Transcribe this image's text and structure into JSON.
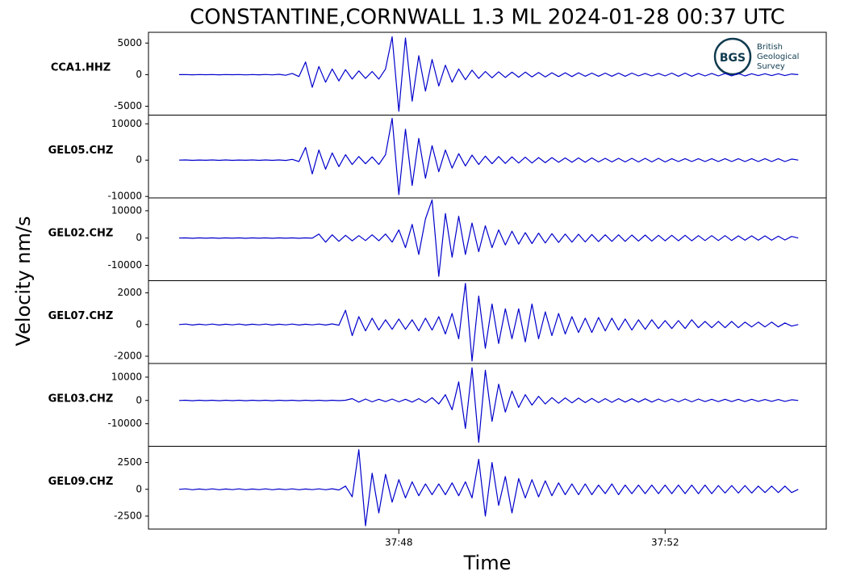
{
  "chart_data": {
    "type": "line",
    "title": "CONSTANTINE,CORNWALL 1.3 ML   2024-01-28 00:37 UTC",
    "xlabel": "Time",
    "ylabel": "Velocity nm/s",
    "color": "#0000cc",
    "logo": {
      "mark": "BGS",
      "lines": [
        "British",
        "Geological",
        "Survey"
      ]
    },
    "xlim": [
      44.24,
      54.42
    ],
    "xticks": [
      {
        "value": 48,
        "label": "37:48"
      },
      {
        "value": 52,
        "label": "37:52"
      }
    ],
    "x": [
      44.7,
      44.8,
      44.9,
      45.0,
      45.1,
      45.2,
      45.3,
      45.4,
      45.5,
      45.6,
      45.7,
      45.8,
      45.9,
      46.0,
      46.1,
      46.2,
      46.3,
      46.4,
      46.5,
      46.6,
      46.7,
      46.8,
      46.9,
      47.0,
      47.1,
      47.2,
      47.3,
      47.4,
      47.5,
      47.6,
      47.7,
      47.8,
      47.9,
      48.0,
      48.1,
      48.2,
      48.3,
      48.4,
      48.5,
      48.6,
      48.7,
      48.8,
      48.9,
      49.0,
      49.1,
      49.2,
      49.3,
      49.4,
      49.5,
      49.6,
      49.7,
      49.8,
      49.9,
      50.0,
      50.1,
      50.2,
      50.3,
      50.4,
      50.5,
      50.6,
      50.7,
      50.8,
      50.9,
      51.0,
      51.1,
      51.2,
      51.3,
      51.4,
      51.5,
      51.6,
      51.7,
      51.8,
      51.9,
      52.0,
      52.1,
      52.2,
      52.3,
      52.4,
      52.5,
      52.6,
      52.7,
      52.8,
      52.9,
      53.0,
      53.1,
      53.2,
      53.3,
      53.4,
      53.5,
      53.6,
      53.7,
      53.8,
      53.9,
      54.0
    ],
    "panels": [
      {
        "name": "CCA1.HHZ",
        "ylim": [
          -6400,
          6700
        ],
        "yticks": [
          -5000,
          0,
          5000
        ],
        "values": [
          0,
          20,
          -20,
          10,
          -10,
          20,
          -20,
          10,
          -10,
          20,
          -30,
          20,
          -20,
          30,
          -30,
          50,
          -100,
          200,
          -300,
          2000,
          -2000,
          1300,
          -1200,
          900,
          -1000,
          800,
          -700,
          600,
          -600,
          500,
          -700,
          900,
          6000,
          -5800,
          5800,
          -4200,
          3000,
          -2600,
          2400,
          -1800,
          1500,
          -1200,
          900,
          -800,
          700,
          -600,
          500,
          -500,
          450,
          -450,
          400,
          -400,
          400,
          -350,
          350,
          -350,
          300,
          -300,
          300,
          -300,
          300,
          -250,
          250,
          -250,
          250,
          -250,
          250,
          -250,
          250,
          -200,
          200,
          -200,
          200,
          -200,
          250,
          -250,
          250,
          -250,
          200,
          -200,
          200,
          -200,
          200,
          -200,
          200,
          -200,
          150,
          -150,
          150,
          -150,
          150,
          -150,
          100,
          0
        ]
      },
      {
        "name": "GEL05.CHZ",
        "ylim": [
          -10400,
          12400
        ],
        "yticks": [
          -10000,
          0,
          10000
        ],
        "values": [
          0,
          50,
          -50,
          40,
          -40,
          60,
          -60,
          50,
          -50,
          40,
          -40,
          60,
          -60,
          50,
          -50,
          60,
          -80,
          200,
          -400,
          3500,
          -3800,
          2800,
          -2500,
          2000,
          -1800,
          1500,
          -1200,
          1000,
          -1000,
          900,
          -1200,
          1500,
          11500,
          -9500,
          8500,
          -7000,
          6000,
          -5000,
          4000,
          -3200,
          2800,
          -2200,
          1800,
          -1600,
          1400,
          -1200,
          1100,
          -1000,
          1000,
          -900,
          900,
          -800,
          800,
          -800,
          700,
          -700,
          700,
          -600,
          600,
          -600,
          600,
          -600,
          600,
          -500,
          500,
          -500,
          500,
          -500,
          500,
          -500,
          500,
          -500,
          500,
          -500,
          400,
          -400,
          400,
          -400,
          400,
          -400,
          400,
          -400,
          400,
          -400,
          400,
          -400,
          400,
          -400,
          400,
          -400,
          400,
          -400,
          300,
          0
        ]
      },
      {
        "name": "GEL02.CHZ",
        "ylim": [
          -15600,
          14700
        ],
        "yticks": [
          -10000,
          0,
          10000
        ],
        "values": [
          0,
          80,
          -80,
          60,
          -60,
          80,
          -80,
          60,
          -60,
          80,
          -80,
          60,
          -60,
          80,
          -80,
          60,
          -60,
          80,
          -80,
          60,
          -60,
          1500,
          -1500,
          1200,
          -1200,
          1000,
          -1000,
          900,
          -900,
          1200,
          -1000,
          1500,
          -1500,
          3000,
          -3500,
          5000,
          -6000,
          7000,
          14000,
          -14000,
          9000,
          -7000,
          8000,
          -6000,
          5500,
          -5000,
          4500,
          -3500,
          3000,
          -2500,
          2500,
          -2200,
          2000,
          -2000,
          1800,
          -1800,
          1600,
          -1600,
          1500,
          -1500,
          1400,
          -1400,
          1300,
          -1300,
          1200,
          -1200,
          1200,
          -1200,
          1100,
          -1100,
          1100,
          -1100,
          1000,
          -1000,
          1000,
          -1000,
          1000,
          -1000,
          900,
          -900,
          900,
          -900,
          900,
          -900,
          800,
          -800,
          800,
          -800,
          800,
          -800,
          700,
          -700,
          600,
          0
        ]
      },
      {
        "name": "GEL07.CHZ",
        "ylim": [
          -2460,
          2770
        ],
        "yticks": [
          -2000,
          0,
          2000
        ],
        "values": [
          0,
          30,
          -30,
          20,
          -20,
          30,
          -30,
          20,
          -20,
          30,
          -30,
          20,
          -20,
          30,
          -30,
          20,
          -20,
          30,
          -30,
          20,
          -20,
          30,
          -30,
          40,
          -40,
          900,
          -700,
          500,
          -400,
          400,
          -350,
          300,
          -300,
          350,
          -300,
          300,
          -400,
          400,
          -350,
          500,
          -600,
          700,
          -900,
          2600,
          -2300,
          1800,
          -1500,
          1300,
          -1200,
          1000,
          -900,
          1000,
          -1100,
          1300,
          -900,
          800,
          -700,
          700,
          -600,
          500,
          -500,
          400,
          -500,
          450,
          -400,
          400,
          -350,
          350,
          -350,
          300,
          -300,
          300,
          -250,
          250,
          -250,
          250,
          -250,
          300,
          -200,
          200,
          -200,
          200,
          -200,
          200,
          -200,
          150,
          -150,
          150,
          -150,
          150,
          -150,
          100,
          -100,
          0
        ]
      },
      {
        "name": "GEL03.CHZ",
        "ylim": [
          -19660,
          15860
        ],
        "yticks": [
          -10000,
          0,
          10000
        ],
        "values": [
          0,
          100,
          -100,
          80,
          -80,
          100,
          -100,
          80,
          -80,
          100,
          -100,
          80,
          -80,
          100,
          -100,
          80,
          -80,
          100,
          -100,
          80,
          -80,
          100,
          -100,
          80,
          -80,
          100,
          800,
          -700,
          600,
          -600,
          500,
          -500,
          600,
          -600,
          500,
          -700,
          800,
          -900,
          1200,
          -1500,
          2500,
          -4000,
          8000,
          -12000,
          14000,
          -18000,
          13000,
          -9000,
          7000,
          -5000,
          4000,
          -3000,
          2500,
          -2000,
          1800,
          -1500,
          1200,
          -1200,
          1100,
          -1000,
          1000,
          -900,
          900,
          -900,
          800,
          -800,
          800,
          -700,
          700,
          -700,
          700,
          -700,
          600,
          -600,
          600,
          -600,
          600,
          -600,
          600,
          -500,
          500,
          -500,
          500,
          -500,
          500,
          -500,
          500,
          -400,
          400,
          -400,
          400,
          -400,
          300,
          0
        ]
      },
      {
        "name": "GEL09.CHZ",
        "ylim": [
          -3710,
          4015
        ],
        "yticks": [
          -2500,
          0,
          2500
        ],
        "values": [
          0,
          40,
          -40,
          30,
          -30,
          40,
          -40,
          30,
          -30,
          40,
          -40,
          30,
          -30,
          40,
          -40,
          30,
          -30,
          40,
          -40,
          30,
          -30,
          40,
          -40,
          50,
          -60,
          300,
          -700,
          3700,
          -3400,
          1500,
          -2200,
          1400,
          -1200,
          900,
          -800,
          700,
          -600,
          500,
          -500,
          500,
          -500,
          600,
          -600,
          700,
          -800,
          2800,
          -2500,
          2500,
          -1500,
          1200,
          -2200,
          1000,
          -800,
          900,
          -700,
          800,
          -600,
          600,
          -500,
          500,
          -500,
          500,
          -500,
          400,
          -400,
          500,
          -500,
          400,
          -400,
          400,
          -400,
          400,
          -400,
          400,
          -400,
          400,
          -400,
          400,
          -400,
          400,
          -400,
          350,
          -350,
          350,
          -350,
          350,
          -350,
          300,
          -300,
          300,
          -300,
          300,
          -300,
          0
        ]
      }
    ]
  }
}
